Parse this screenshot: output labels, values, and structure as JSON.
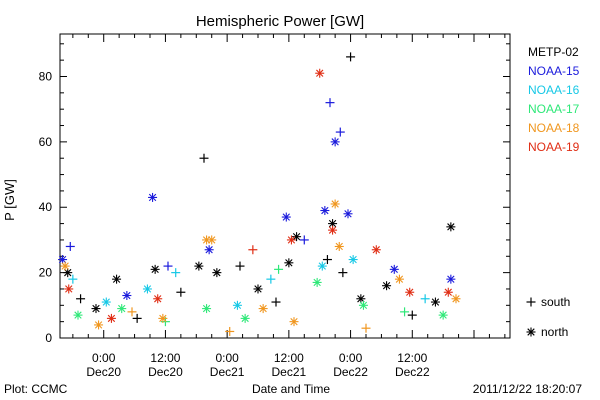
{
  "chart_data": {
    "type": "scatter",
    "title": "Hemispheric Power [GW]",
    "xlabel": "Date and Time",
    "ylabel": "P [GW]",
    "ylim": [
      0,
      93
    ],
    "xlim_hours_from_dec20_0000": [
      -8.5,
      79
    ],
    "y_ticks": [
      0,
      20,
      40,
      60,
      80
    ],
    "x_ticks": [
      {
        "hours": 0,
        "time": "0:00",
        "date": "Dec20"
      },
      {
        "hours": 12,
        "time": "12:00",
        "date": "Dec20"
      },
      {
        "hours": 24,
        "time": "0:00",
        "date": "Dec21"
      },
      {
        "hours": 36,
        "time": "12:00",
        "date": "Dec21"
      },
      {
        "hours": 48,
        "time": "0:00",
        "date": "Dec22"
      },
      {
        "hours": 60,
        "time": "12:00",
        "date": "Dec22"
      }
    ],
    "legend_position": "right",
    "marker_legend": [
      {
        "symbol": "+",
        "label": "south"
      },
      {
        "symbol": "*",
        "label": "north"
      }
    ],
    "series": [
      {
        "name": "METP-02",
        "color": "#000000",
        "points": [
          {
            "x": -7.0,
            "y": 20,
            "m": "*"
          },
          {
            "x": -4.5,
            "y": 12,
            "m": "+"
          },
          {
            "x": -1.5,
            "y": 9,
            "m": "*"
          },
          {
            "x": 2.5,
            "y": 18,
            "m": "*"
          },
          {
            "x": 6.5,
            "y": 6,
            "m": "+"
          },
          {
            "x": 10.0,
            "y": 21,
            "m": "*"
          },
          {
            "x": 15.0,
            "y": 14,
            "m": "+"
          },
          {
            "x": 18.5,
            "y": 22,
            "m": "*"
          },
          {
            "x": 19.5,
            "y": 55,
            "m": "+"
          },
          {
            "x": 22.0,
            "y": 20,
            "m": "*"
          },
          {
            "x": 26.5,
            "y": 22,
            "m": "+"
          },
          {
            "x": 30.0,
            "y": 15,
            "m": "*"
          },
          {
            "x": 33.5,
            "y": 11,
            "m": "+"
          },
          {
            "x": 36.0,
            "y": 23,
            "m": "*"
          },
          {
            "x": 37.5,
            "y": 31,
            "m": "*"
          },
          {
            "x": 43.5,
            "y": 24,
            "m": "+"
          },
          {
            "x": 44.5,
            "y": 35,
            "m": "*"
          },
          {
            "x": 46.5,
            "y": 20,
            "m": "+"
          },
          {
            "x": 48.0,
            "y": 86,
            "m": "+"
          },
          {
            "x": 50.0,
            "y": 12,
            "m": "*"
          },
          {
            "x": 55.0,
            "y": 16,
            "m": "*"
          },
          {
            "x": 60.0,
            "y": 7,
            "m": "+"
          },
          {
            "x": 64.5,
            "y": 11,
            "m": "*"
          },
          {
            "x": 67.5,
            "y": 34,
            "m": "*"
          }
        ]
      },
      {
        "name": "NOAA-15",
        "color": "#1a1adc",
        "points": [
          {
            "x": -8.0,
            "y": 24,
            "m": "*"
          },
          {
            "x": -6.5,
            "y": 28,
            "m": "+"
          },
          {
            "x": 4.5,
            "y": 13,
            "m": "*"
          },
          {
            "x": 9.5,
            "y": 43,
            "m": "*"
          },
          {
            "x": 12.5,
            "y": 22,
            "m": "+"
          },
          {
            "x": 20.5,
            "y": 27,
            "m": "*"
          },
          {
            "x": 35.5,
            "y": 37,
            "m": "*"
          },
          {
            "x": 39.0,
            "y": 30,
            "m": "+"
          },
          {
            "x": 43.0,
            "y": 39,
            "m": "*"
          },
          {
            "x": 44.0,
            "y": 72,
            "m": "+"
          },
          {
            "x": 45.0,
            "y": 60,
            "m": "*"
          },
          {
            "x": 46.0,
            "y": 63,
            "m": "+"
          },
          {
            "x": 47.5,
            "y": 38,
            "m": "*"
          },
          {
            "x": 56.5,
            "y": 21,
            "m": "*"
          },
          {
            "x": 67.5,
            "y": 18,
            "m": "*"
          }
        ]
      },
      {
        "name": "NOAA-16",
        "color": "#16c8e6",
        "points": [
          {
            "x": -6.0,
            "y": 18,
            "m": "+"
          },
          {
            "x": 0.5,
            "y": 11,
            "m": "*"
          },
          {
            "x": 8.5,
            "y": 15,
            "m": "*"
          },
          {
            "x": 14.0,
            "y": 20,
            "m": "+"
          },
          {
            "x": 26.0,
            "y": 10,
            "m": "*"
          },
          {
            "x": 32.5,
            "y": 18,
            "m": "+"
          },
          {
            "x": 42.5,
            "y": 22,
            "m": "*"
          },
          {
            "x": 48.5,
            "y": 24,
            "m": "*"
          },
          {
            "x": 62.5,
            "y": 12,
            "m": "+"
          }
        ]
      },
      {
        "name": "NOAA-17",
        "color": "#2ee878",
        "points": [
          {
            "x": -5.0,
            "y": 7,
            "m": "*"
          },
          {
            "x": 3.5,
            "y": 9,
            "m": "*"
          },
          {
            "x": 12.0,
            "y": 5,
            "m": "+"
          },
          {
            "x": 20.0,
            "y": 9,
            "m": "*"
          },
          {
            "x": 27.5,
            "y": 6,
            "m": "*"
          },
          {
            "x": 34.0,
            "y": 21,
            "m": "+"
          },
          {
            "x": 41.5,
            "y": 17,
            "m": "*"
          },
          {
            "x": 50.5,
            "y": 10,
            "m": "*"
          },
          {
            "x": 58.5,
            "y": 8,
            "m": "+"
          },
          {
            "x": 66.0,
            "y": 7,
            "m": "*"
          }
        ]
      },
      {
        "name": "NOAA-18",
        "color": "#f0961e",
        "points": [
          {
            "x": -7.5,
            "y": 22,
            "m": "*"
          },
          {
            "x": -1.0,
            "y": 4,
            "m": "*"
          },
          {
            "x": 5.5,
            "y": 8,
            "m": "+"
          },
          {
            "x": 11.5,
            "y": 6,
            "m": "*"
          },
          {
            "x": 20.0,
            "y": 30,
            "m": "*"
          },
          {
            "x": 21.0,
            "y": 30,
            "m": "*"
          },
          {
            "x": 24.5,
            "y": 2,
            "m": "+"
          },
          {
            "x": 31.0,
            "y": 9,
            "m": "*"
          },
          {
            "x": 37.0,
            "y": 5,
            "m": "*"
          },
          {
            "x": 45.0,
            "y": 41,
            "m": "*"
          },
          {
            "x": 45.8,
            "y": 28,
            "m": "*"
          },
          {
            "x": 51.0,
            "y": 3,
            "m": "+"
          },
          {
            "x": 57.5,
            "y": 18,
            "m": "*"
          },
          {
            "x": 68.5,
            "y": 12,
            "m": "*"
          }
        ]
      },
      {
        "name": "NOAA-19",
        "color": "#e02d14",
        "points": [
          {
            "x": -6.8,
            "y": 15,
            "m": "*"
          },
          {
            "x": 1.5,
            "y": 6,
            "m": "*"
          },
          {
            "x": 10.5,
            "y": 12,
            "m": "*"
          },
          {
            "x": 29.0,
            "y": 27,
            "m": "+"
          },
          {
            "x": 36.5,
            "y": 30,
            "m": "*"
          },
          {
            "x": 42.0,
            "y": 81,
            "m": "*"
          },
          {
            "x": 44.5,
            "y": 33,
            "m": "*"
          },
          {
            "x": 53.0,
            "y": 27,
            "m": "*"
          },
          {
            "x": 59.5,
            "y": 14,
            "m": "*"
          },
          {
            "x": 67.0,
            "y": 14,
            "m": "*"
          }
        ]
      }
    ]
  },
  "footer": {
    "left": "Plot: CCMC",
    "right": "2011/12/22 18:20:07"
  }
}
